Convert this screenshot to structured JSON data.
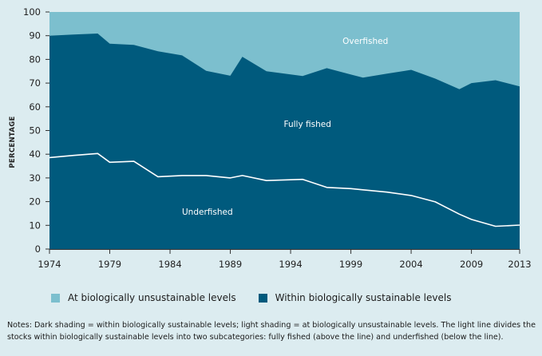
{
  "chart_data": {
    "type": "area",
    "x": [
      1974,
      1976,
      1978,
      1979,
      1981,
      1983,
      1985,
      1987,
      1989,
      1990,
      1992,
      1995,
      1997,
      1999,
      2000,
      2002,
      2004,
      2006,
      2008,
      2009,
      2011,
      2013
    ],
    "sustainable_total": [
      90.0,
      90.5,
      90.9,
      86.6,
      86.1,
      83.4,
      81.7,
      75.2,
      73.1,
      81.1,
      75.0,
      73.0,
      76.3,
      73.6,
      72.3,
      74.0,
      75.6,
      71.9,
      67.4,
      70.0,
      71.2,
      68.6
    ],
    "underfished": [
      38.6,
      39.5,
      40.3,
      36.6,
      37.0,
      30.5,
      31.0,
      31.0,
      30.0,
      31.0,
      28.9,
      29.4,
      26.0,
      25.5,
      25.0,
      24.0,
      22.6,
      19.9,
      14.7,
      12.5,
      9.6,
      10.1
    ],
    "series": [
      {
        "name": "At biologically unsustainable levels",
        "color": "#7cbfce"
      },
      {
        "name": "Within biologically sustainable levels",
        "color": "#005a7d"
      }
    ],
    "line_color": "#ffffff",
    "xlim": [
      1974,
      2013
    ],
    "ylim": [
      0,
      100
    ],
    "yticks": [
      0,
      10,
      20,
      30,
      40,
      50,
      60,
      70,
      80,
      90,
      100
    ],
    "xticks": [
      1974,
      1979,
      1984,
      1989,
      1994,
      1999,
      2004,
      2009,
      2013
    ],
    "ylabel": "PERCENTAGE",
    "annotations": [
      {
        "text": "Overfished",
        "x": 2000.2,
        "y": 86.5
      },
      {
        "text": "Fully fished",
        "x": 1995.4,
        "y": 51.5
      },
      {
        "text": "Underfished",
        "x": 1987.1,
        "y": 14.5
      }
    ],
    "legend_position": "bottom"
  },
  "notes": "Notes: Dark shading = within biologically sustainable levels; light shading = at biologically unsustainable levels. The light line divides the stocks within biologically sustainable levels into two subcategories: fully fished (above the line) and underfished (below the line)."
}
